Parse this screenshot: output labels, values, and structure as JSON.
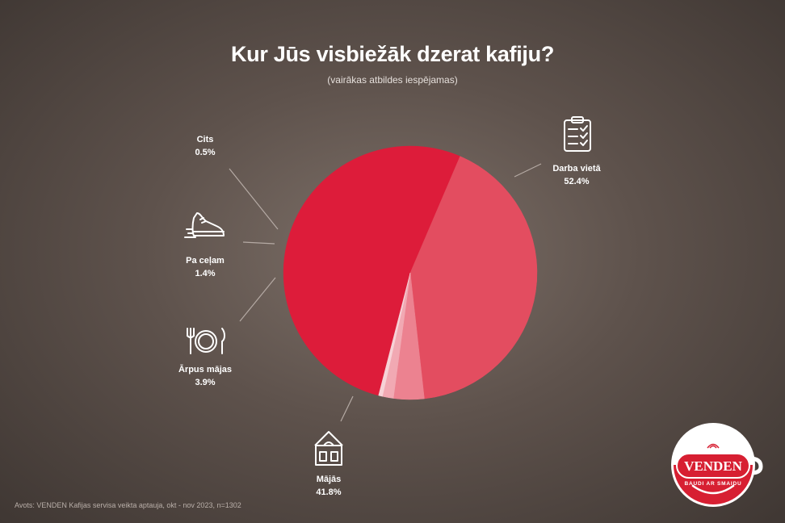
{
  "chart_data": {
    "type": "pie",
    "title": "Kur Jūs visbiežāk dzerat kafiju?",
    "subtitle": "(vairākas atbildes iespējamas)",
    "slices": [
      {
        "label": "Darba vietā",
        "value": 52.4,
        "display": "52.4%",
        "color": "#dd1c3a",
        "icon": "clipboard-checklist-icon"
      },
      {
        "label": "Mājās",
        "value": 41.8,
        "display": "41.8%",
        "color": "#e34d60",
        "icon": "house-icon"
      },
      {
        "label": "Ārpus mājas",
        "value": 3.9,
        "display": "3.9%",
        "color": "#ec8290",
        "icon": "plate-fork-knife-icon"
      },
      {
        "label": "Pa ceļam",
        "value": 1.4,
        "display": "1.4%",
        "color": "#f1a9b3",
        "icon": "sneaker-icon"
      },
      {
        "label": "Cits",
        "value": 0.5,
        "display": "0.5%",
        "color": "#f7d2d7",
        "icon": ""
      }
    ]
  },
  "footer": {
    "source": "Avots: VENDEN Kafijas servisa veikta aptauja, okt - nov 2023, n=1302"
  },
  "logo": {
    "brand": "VENDEN",
    "slogan": "BAUDI AR SMAIDU",
    "colors": {
      "red": "#d71f32",
      "white": "#ffffff"
    }
  }
}
